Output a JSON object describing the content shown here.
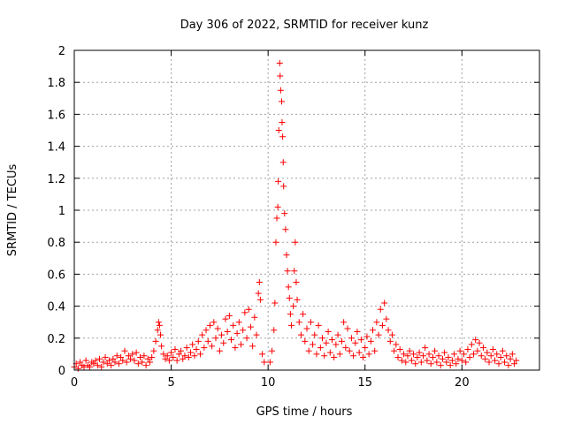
{
  "chart_data": {
    "type": "scatter",
    "title": "Day 306 of 2022, SRMTID for receiver kunz",
    "xlabel": "GPS time / hours",
    "ylabel": "SRMTID / TECUs",
    "xlim": [
      0,
      24
    ],
    "ylim": [
      0,
      2
    ],
    "xticks": [
      0,
      5,
      10,
      15,
      20
    ],
    "yticks": [
      0,
      0.2,
      0.4,
      0.6,
      0.8,
      1,
      1.2,
      1.4,
      1.6,
      1.8,
      2
    ],
    "xtick_labels": [
      "0",
      "5",
      "10",
      "15",
      "20"
    ],
    "ytick_labels": [
      "0",
      "0.2",
      "0.4",
      "0.6",
      "0.8",
      "1",
      "1.2",
      "1.4",
      "1.6",
      "1.8",
      "2"
    ],
    "grid": true,
    "marker": "+",
    "color": "#ff0000",
    "series": [
      {
        "name": "SRMTID",
        "points": [
          [
            0.0,
            0.02
          ],
          [
            0.1,
            0.04
          ],
          [
            0.2,
            0.01
          ],
          [
            0.3,
            0.05
          ],
          [
            0.4,
            0.03
          ],
          [
            0.5,
            0.02
          ],
          [
            0.6,
            0.06
          ],
          [
            0.7,
            0.03
          ],
          [
            0.8,
            0.02
          ],
          [
            0.9,
            0.05
          ],
          [
            1.0,
            0.04
          ],
          [
            1.1,
            0.06
          ],
          [
            1.2,
            0.03
          ],
          [
            1.3,
            0.07
          ],
          [
            1.4,
            0.02
          ],
          [
            1.5,
            0.05
          ],
          [
            1.6,
            0.08
          ],
          [
            1.7,
            0.04
          ],
          [
            1.8,
            0.06
          ],
          [
            1.9,
            0.03
          ],
          [
            2.0,
            0.07
          ],
          [
            2.1,
            0.05
          ],
          [
            2.2,
            0.09
          ],
          [
            2.3,
            0.04
          ],
          [
            2.4,
            0.08
          ],
          [
            2.5,
            0.06
          ],
          [
            2.6,
            0.12
          ],
          [
            2.7,
            0.05
          ],
          [
            2.8,
            0.09
          ],
          [
            2.9,
            0.07
          ],
          [
            3.0,
            0.1
          ],
          [
            3.1,
            0.06
          ],
          [
            3.2,
            0.11
          ],
          [
            3.3,
            0.04
          ],
          [
            3.4,
            0.08
          ],
          [
            3.5,
            0.05
          ],
          [
            3.6,
            0.09
          ],
          [
            3.7,
            0.03
          ],
          [
            3.8,
            0.07
          ],
          [
            3.9,
            0.05
          ],
          [
            4.0,
            0.08
          ],
          [
            4.1,
            0.12
          ],
          [
            4.2,
            0.18
          ],
          [
            4.3,
            0.25
          ],
          [
            4.35,
            0.3
          ],
          [
            4.4,
            0.28
          ],
          [
            4.45,
            0.22
          ],
          [
            4.5,
            0.15
          ],
          [
            4.6,
            0.1
          ],
          [
            4.7,
            0.07
          ],
          [
            4.8,
            0.09
          ],
          [
            4.9,
            0.06
          ],
          [
            5.0,
            0.11
          ],
          [
            5.1,
            0.08
          ],
          [
            5.2,
            0.13
          ],
          [
            5.3,
            0.06
          ],
          [
            5.4,
            0.1
          ],
          [
            5.5,
            0.12
          ],
          [
            5.6,
            0.07
          ],
          [
            5.7,
            0.09
          ],
          [
            5.8,
            0.14
          ],
          [
            5.9,
            0.08
          ],
          [
            6.0,
            0.11
          ],
          [
            6.1,
            0.16
          ],
          [
            6.2,
            0.09
          ],
          [
            6.3,
            0.13
          ],
          [
            6.4,
            0.18
          ],
          [
            6.5,
            0.1
          ],
          [
            6.6,
            0.22
          ],
          [
            6.7,
            0.14
          ],
          [
            6.8,
            0.25
          ],
          [
            6.9,
            0.18
          ],
          [
            7.0,
            0.28
          ],
          [
            7.1,
            0.15
          ],
          [
            7.2,
            0.3
          ],
          [
            7.3,
            0.2
          ],
          [
            7.4,
            0.26
          ],
          [
            7.5,
            0.12
          ],
          [
            7.6,
            0.22
          ],
          [
            7.7,
            0.17
          ],
          [
            7.8,
            0.32
          ],
          [
            7.9,
            0.24
          ],
          [
            8.0,
            0.34
          ],
          [
            8.1,
            0.19
          ],
          [
            8.2,
            0.28
          ],
          [
            8.3,
            0.14
          ],
          [
            8.4,
            0.23
          ],
          [
            8.5,
            0.3
          ],
          [
            8.6,
            0.16
          ],
          [
            8.7,
            0.25
          ],
          [
            8.8,
            0.36
          ],
          [
            8.9,
            0.2
          ],
          [
            9.0,
            0.38
          ],
          [
            9.1,
            0.27
          ],
          [
            9.2,
            0.15
          ],
          [
            9.3,
            0.33
          ],
          [
            9.4,
            0.22
          ],
          [
            9.5,
            0.48
          ],
          [
            9.55,
            0.55
          ],
          [
            9.6,
            0.44
          ],
          [
            9.7,
            0.1
          ],
          [
            9.8,
            0.05
          ],
          [
            10.1,
            0.05
          ],
          [
            10.2,
            0.12
          ],
          [
            10.3,
            0.25
          ],
          [
            10.35,
            0.42
          ],
          [
            10.4,
            0.8
          ],
          [
            10.45,
            0.95
          ],
          [
            10.5,
            1.02
          ],
          [
            10.52,
            1.18
          ],
          [
            10.55,
            1.5
          ],
          [
            10.6,
            1.92
          ],
          [
            10.62,
            1.84
          ],
          [
            10.65,
            1.75
          ],
          [
            10.7,
            1.68
          ],
          [
            10.72,
            1.55
          ],
          [
            10.75,
            1.46
          ],
          [
            10.78,
            1.3
          ],
          [
            10.8,
            1.15
          ],
          [
            10.85,
            0.98
          ],
          [
            10.9,
            0.88
          ],
          [
            10.95,
            0.72
          ],
          [
            11.0,
            0.62
          ],
          [
            11.05,
            0.52
          ],
          [
            11.1,
            0.45
          ],
          [
            11.15,
            0.35
          ],
          [
            11.2,
            0.28
          ],
          [
            11.3,
            0.4
          ],
          [
            11.35,
            0.62
          ],
          [
            11.4,
            0.8
          ],
          [
            11.45,
            0.55
          ],
          [
            11.5,
            0.44
          ],
          [
            11.6,
            0.3
          ],
          [
            11.7,
            0.22
          ],
          [
            11.8,
            0.35
          ],
          [
            11.9,
            0.18
          ],
          [
            12.0,
            0.26
          ],
          [
            12.1,
            0.12
          ],
          [
            12.2,
            0.3
          ],
          [
            12.3,
            0.16
          ],
          [
            12.4,
            0.22
          ],
          [
            12.5,
            0.1
          ],
          [
            12.6,
            0.28
          ],
          [
            12.7,
            0.14
          ],
          [
            12.8,
            0.2
          ],
          [
            12.9,
            0.09
          ],
          [
            13.0,
            0.17
          ],
          [
            13.1,
            0.24
          ],
          [
            13.2,
            0.11
          ],
          [
            13.3,
            0.19
          ],
          [
            13.4,
            0.08
          ],
          [
            13.5,
            0.16
          ],
          [
            13.6,
            0.22
          ],
          [
            13.7,
            0.1
          ],
          [
            13.8,
            0.18
          ],
          [
            13.9,
            0.3
          ],
          [
            14.0,
            0.14
          ],
          [
            14.1,
            0.26
          ],
          [
            14.2,
            0.12
          ],
          [
            14.3,
            0.2
          ],
          [
            14.4,
            0.09
          ],
          [
            14.5,
            0.17
          ],
          [
            14.6,
            0.24
          ],
          [
            14.7,
            0.11
          ],
          [
            14.8,
            0.19
          ],
          [
            14.9,
            0.08
          ],
          [
            15.0,
            0.14
          ],
          [
            15.1,
            0.21
          ],
          [
            15.2,
            0.1
          ],
          [
            15.3,
            0.18
          ],
          [
            15.4,
            0.25
          ],
          [
            15.5,
            0.12
          ],
          [
            15.6,
            0.3
          ],
          [
            15.7,
            0.22
          ],
          [
            15.8,
            0.38
          ],
          [
            15.9,
            0.28
          ],
          [
            16.0,
            0.42
          ],
          [
            16.1,
            0.32
          ],
          [
            16.2,
            0.25
          ],
          [
            16.3,
            0.18
          ],
          [
            16.4,
            0.22
          ],
          [
            16.5,
            0.12
          ],
          [
            16.6,
            0.16
          ],
          [
            16.7,
            0.08
          ],
          [
            16.8,
            0.13
          ],
          [
            16.9,
            0.06
          ],
          [
            17.0,
            0.1
          ],
          [
            17.1,
            0.05
          ],
          [
            17.2,
            0.09
          ],
          [
            17.3,
            0.12
          ],
          [
            17.4,
            0.06
          ],
          [
            17.5,
            0.1
          ],
          [
            17.6,
            0.04
          ],
          [
            17.7,
            0.08
          ],
          [
            17.8,
            0.11
          ],
          [
            17.9,
            0.05
          ],
          [
            18.0,
            0.09
          ],
          [
            18.1,
            0.14
          ],
          [
            18.2,
            0.06
          ],
          [
            18.3,
            0.1
          ],
          [
            18.4,
            0.04
          ],
          [
            18.5,
            0.08
          ],
          [
            18.6,
            0.12
          ],
          [
            18.7,
            0.05
          ],
          [
            18.8,
            0.09
          ],
          [
            18.9,
            0.03
          ],
          [
            19.0,
            0.07
          ],
          [
            19.1,
            0.11
          ],
          [
            19.2,
            0.05
          ],
          [
            19.3,
            0.08
          ],
          [
            19.4,
            0.03
          ],
          [
            19.5,
            0.06
          ],
          [
            19.6,
            0.1
          ],
          [
            19.7,
            0.04
          ],
          [
            19.8,
            0.07
          ],
          [
            19.9,
            0.12
          ],
          [
            20.0,
            0.06
          ],
          [
            20.1,
            0.1
          ],
          [
            20.2,
            0.05
          ],
          [
            20.3,
            0.13
          ],
          [
            20.4,
            0.08
          ],
          [
            20.5,
            0.16
          ],
          [
            20.6,
            0.1
          ],
          [
            20.7,
            0.19
          ],
          [
            20.8,
            0.12
          ],
          [
            20.9,
            0.17
          ],
          [
            21.0,
            0.09
          ],
          [
            21.1,
            0.14
          ],
          [
            21.2,
            0.07
          ],
          [
            21.3,
            0.11
          ],
          [
            21.4,
            0.05
          ],
          [
            21.5,
            0.09
          ],
          [
            21.6,
            0.13
          ],
          [
            21.7,
            0.06
          ],
          [
            21.8,
            0.1
          ],
          [
            21.9,
            0.04
          ],
          [
            22.0,
            0.08
          ],
          [
            22.1,
            0.12
          ],
          [
            22.2,
            0.05
          ],
          [
            22.3,
            0.09
          ],
          [
            22.4,
            0.03
          ],
          [
            22.5,
            0.07
          ],
          [
            22.6,
            0.1
          ],
          [
            22.7,
            0.04
          ],
          [
            22.8,
            0.06
          ]
        ]
      }
    ]
  }
}
